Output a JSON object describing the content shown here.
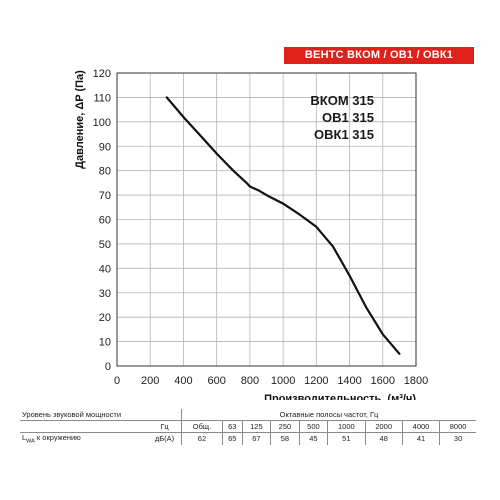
{
  "badge": "ВЕНТС ВКОМ / ОВ1 / ОВК1",
  "models": [
    "ВКОМ 315",
    "ОВ1 315",
    "ОВК1 315"
  ],
  "chart_data": {
    "type": "line",
    "xlabel": "Производительность, (м³/ч)",
    "ylabel": "Давление, ΔP (Па)",
    "xlim": [
      0,
      1800
    ],
    "ylim": [
      0,
      120
    ],
    "xticks": [
      0,
      200,
      400,
      600,
      800,
      1000,
      1200,
      1400,
      1600,
      1800
    ],
    "yticks": [
      0,
      10,
      20,
      30,
      40,
      50,
      60,
      70,
      80,
      90,
      100,
      110,
      120
    ],
    "grid": true,
    "series": [
      {
        "x": [
          300,
          400,
          500,
          600,
          700,
          780,
          800,
          850,
          900,
          1000,
          1100,
          1200,
          1300,
          1400,
          1500,
          1600,
          1700
        ],
        "y": [
          110,
          102,
          94.5,
          87,
          80,
          75,
          73.5,
          72,
          70,
          66.5,
          62,
          57,
          49,
          37,
          24,
          13,
          5
        ]
      }
    ]
  },
  "table": {
    "label_row1": "Уровень звуковой мощности",
    "header_octave": "Октавные полосы частот, Гц",
    "unit_hz": "Гц",
    "freq_headers": [
      "Общ.",
      "63",
      "125",
      "250",
      "500",
      "1000",
      "2000",
      "4000",
      "8000"
    ],
    "label_row3": "L",
    "label_row3_sub": "WA",
    "label_row3_rest": " к окружению",
    "unit_db": "дБ(A)",
    "values": [
      "62",
      "65",
      "67",
      "58",
      "45",
      "51",
      "48",
      "41",
      "30"
    ]
  }
}
